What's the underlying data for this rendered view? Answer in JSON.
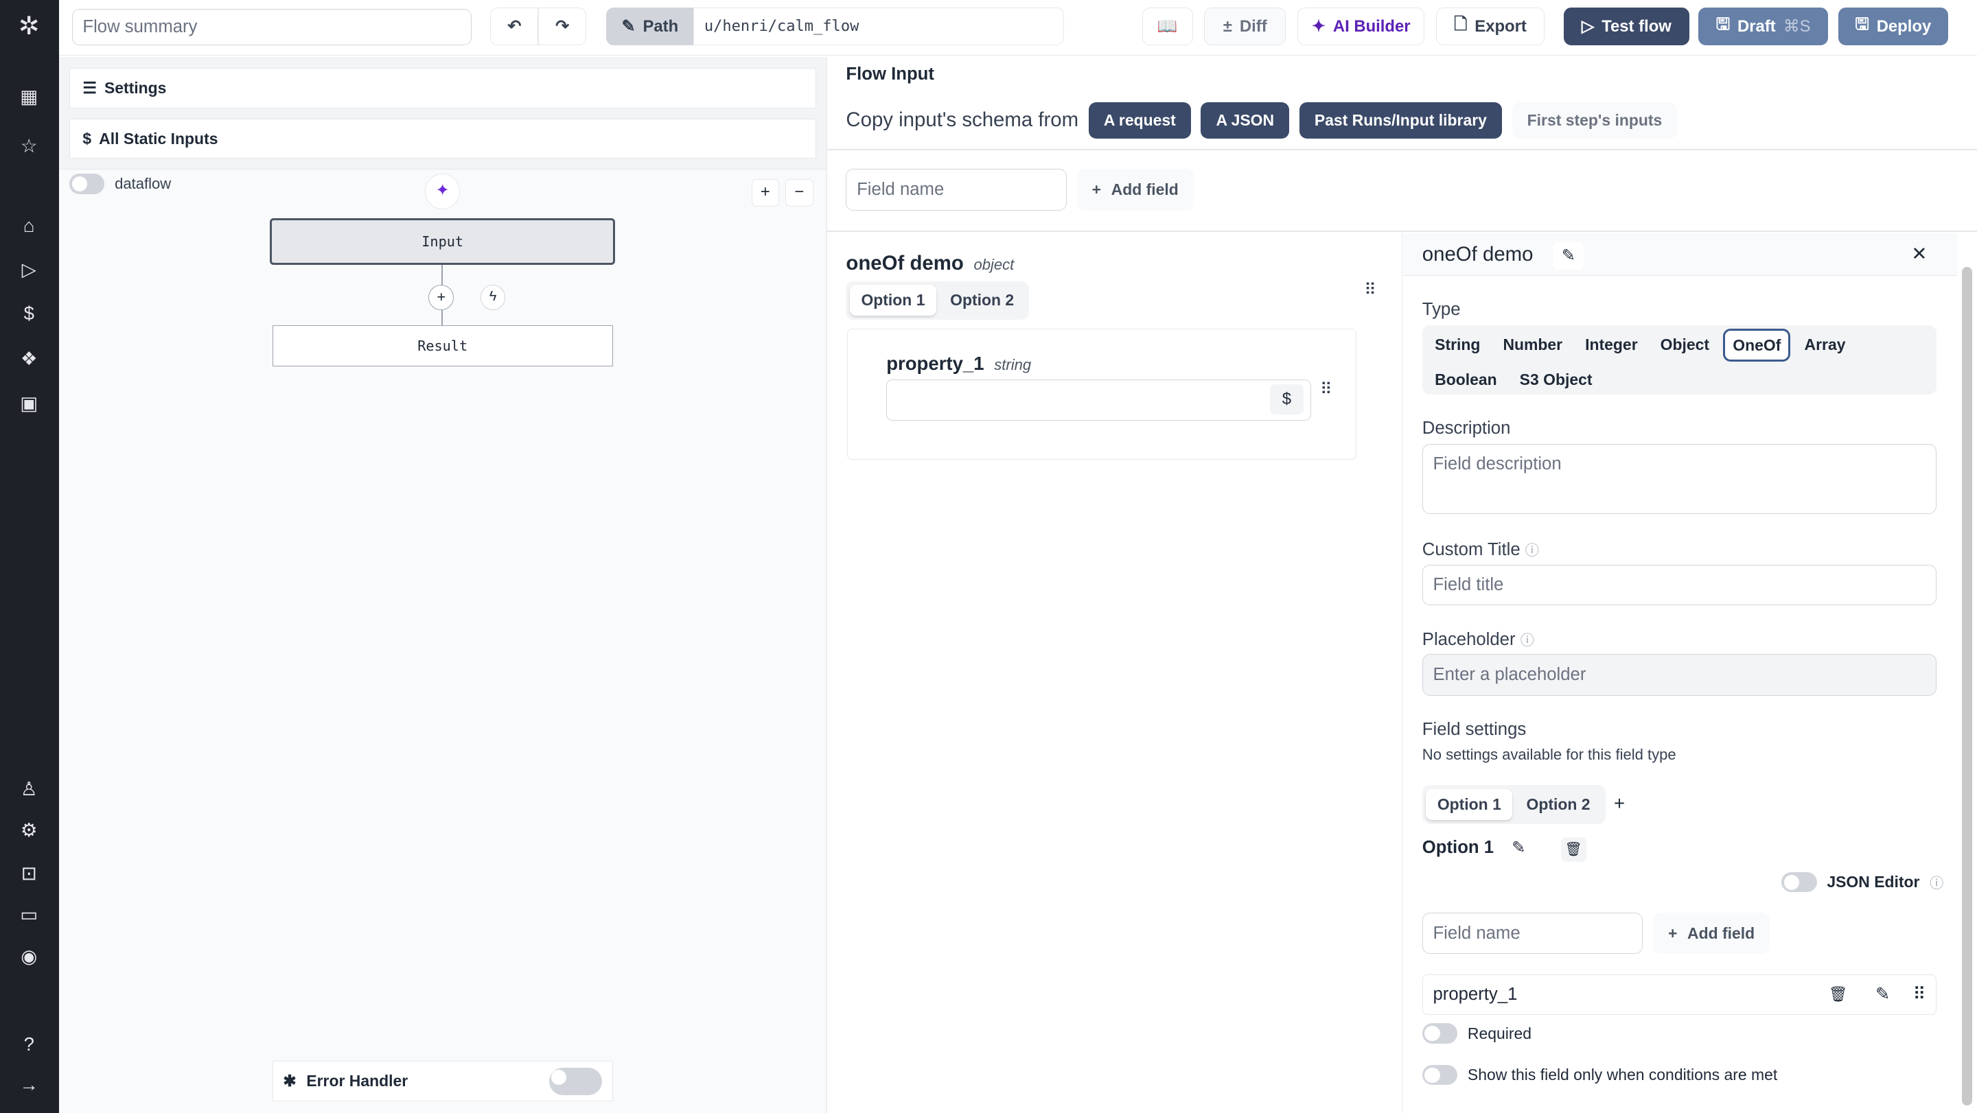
{
  "header": {
    "summary_placeholder": "Flow summary",
    "path_label": "Path",
    "path_value": "u/henri/calm_flow",
    "diff": "Diff",
    "ai_builder": "AI Builder",
    "export": "Export",
    "test_flow": "Test flow",
    "draft": "Draft",
    "draft_shortcut": "⌘S",
    "deploy": "Deploy"
  },
  "left": {
    "settings": "Settings",
    "static_inputs": "All Static Inputs",
    "dataflow": "dataflow",
    "node_input": "Input",
    "node_result": "Result",
    "error_handler": "Error Handler"
  },
  "flow_input": {
    "title": "Flow Input",
    "copy_label": "Copy input's schema from",
    "sources": [
      "A request",
      "A JSON",
      "Past Runs/Input library",
      "First step's inputs"
    ],
    "field_name_placeholder": "Field name",
    "add_field": "Add field"
  },
  "preview": {
    "name": "oneOf demo",
    "type": "object",
    "options": [
      "Option 1",
      "Option 2"
    ],
    "property": "property_1",
    "property_type": "string",
    "dollar": "$"
  },
  "editor": {
    "title": "oneOf demo",
    "type_label": "Type",
    "types": [
      "String",
      "Number",
      "Integer",
      "Object",
      "OneOf",
      "Array",
      "Boolean",
      "S3 Object"
    ],
    "selected_type": "OneOf",
    "description_label": "Description",
    "description_placeholder": "Field description",
    "custom_title_label": "Custom Title",
    "custom_title_placeholder": "Field title",
    "placeholder_label": "Placeholder",
    "placeholder_placeholder": "Enter a placeholder",
    "field_settings_label": "Field settings",
    "field_settings_note": "No settings available for this field type",
    "options": [
      "Option 1",
      "Option 2"
    ],
    "option_heading": "Option 1",
    "json_editor": "JSON Editor",
    "field_name_placeholder": "Field name",
    "add_field": "Add field",
    "property": "property_1",
    "required": "Required",
    "conditional": "Show this field only when conditions are met"
  }
}
